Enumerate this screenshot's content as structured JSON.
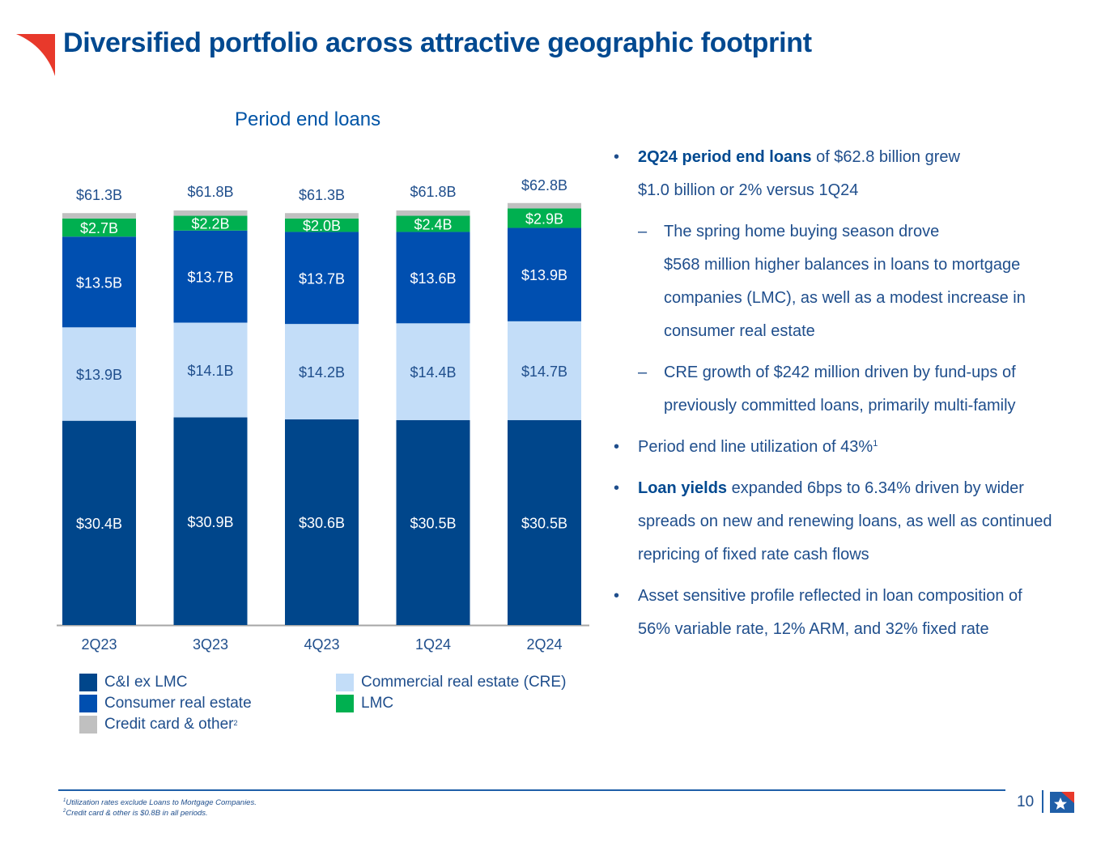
{
  "header": {
    "title": "Diversified portfolio across attractive geographic footprint",
    "logo_icon": "red-corner-flag-icon"
  },
  "colors": {
    "ci_ex_lmc": "#00468b",
    "cre": "#c3ddf8",
    "consumer_re": "#004fb0",
    "lmc": "#00b050",
    "credit_card_other": "#c0c0c0",
    "title": "#004990",
    "accent_red": "#e8392b"
  },
  "chart_data": {
    "type": "bar",
    "stacked": true,
    "title": "Period end loans",
    "xlabel": "",
    "ylabel": "",
    "unit": "$B",
    "categories": [
      "2Q23",
      "3Q23",
      "4Q23",
      "1Q24",
      "2Q24"
    ],
    "totals": [
      61.3,
      61.8,
      61.3,
      61.8,
      62.8
    ],
    "total_labels": [
      "$61.3B",
      "$61.8B",
      "$61.3B",
      "$61.8B",
      "$62.8B"
    ],
    "series": [
      {
        "key": "ci_ex_lmc",
        "name": "C&I ex LMC",
        "values": [
          30.4,
          30.9,
          30.6,
          30.5,
          30.5
        ],
        "labels": [
          "$30.4B",
          "$30.9B",
          "$30.6B",
          "$30.5B",
          "$30.5B"
        ],
        "label_color": "#ffffff"
      },
      {
        "key": "cre",
        "name": "Commercial real estate (CRE)",
        "values": [
          13.9,
          14.1,
          14.2,
          14.4,
          14.7
        ],
        "labels": [
          "$13.9B",
          "$14.1B",
          "$14.2B",
          "$14.4B",
          "$14.7B"
        ],
        "label_color": "#1f4e8c"
      },
      {
        "key": "consumer_re",
        "name": "Consumer real estate",
        "values": [
          13.5,
          13.7,
          13.7,
          13.6,
          13.9
        ],
        "labels": [
          "$13.5B",
          "$13.7B",
          "$13.7B",
          "$13.6B",
          "$13.9B"
        ],
        "label_color": "#ffffff"
      },
      {
        "key": "lmc",
        "name": "LMC",
        "values": [
          2.7,
          2.2,
          2.0,
          2.4,
          2.9
        ],
        "labels": [
          "$2.7B",
          "$2.2B",
          "$2.0B",
          "$2.4B",
          "$2.9B"
        ],
        "label_color": "#ffffff"
      },
      {
        "key": "credit_card_other",
        "name": "Credit card & other",
        "values": [
          0.8,
          0.8,
          0.8,
          0.8,
          0.8
        ],
        "labels": [
          "",
          "",
          "",
          "",
          ""
        ],
        "label_color": "#ffffff"
      }
    ],
    "ylim": [
      0,
      64
    ],
    "grid": false,
    "legend_position": "bottom"
  },
  "legend": {
    "items": [
      {
        "label": "C&I ex LMC",
        "sup": ""
      },
      {
        "label": "Consumer real estate",
        "sup": ""
      },
      {
        "label": "Credit card & other",
        "sup": "2"
      },
      {
        "label": "Commercial real estate (CRE)",
        "sup": ""
      },
      {
        "label": "LMC",
        "sup": ""
      }
    ]
  },
  "bullets": {
    "b1_bold": "2Q24 period end loans",
    "b1_rest_line1": " of $62.8 billion grew",
    "b1_rest_line2": "$1.0 billion or 2% versus 1Q24",
    "s1_line1": "The spring home buying season drove",
    "s1_line2": "$568 million higher balances in loans to mortgage companies (LMC), as well as a modest increase in consumer real estate",
    "s2": "CRE growth of $242 million driven by fund-ups of previously committed loans, primarily multi-family",
    "b2": "Period end line utilization of 43%",
    "b2_sup": "1",
    "b3_bold": "Loan yields",
    "b3_rest": " expanded 6bps to 6.34% driven by wider spreads on new and renewing loans, as well as continued repricing of fixed rate cash flows",
    "b4": "Asset sensitive profile reflected in loan composition of 56% variable rate, 12% ARM, and 32% fixed rate"
  },
  "footer": {
    "fn1_sup": "1",
    "fn1": "Utilization rates exclude Loans to Mortgage Companies.",
    "fn2_sup": "2",
    "fn2": "Credit card & other is $0.8B in all periods.",
    "page_number": "10",
    "brand_icon": "star-flag-logo-icon"
  }
}
